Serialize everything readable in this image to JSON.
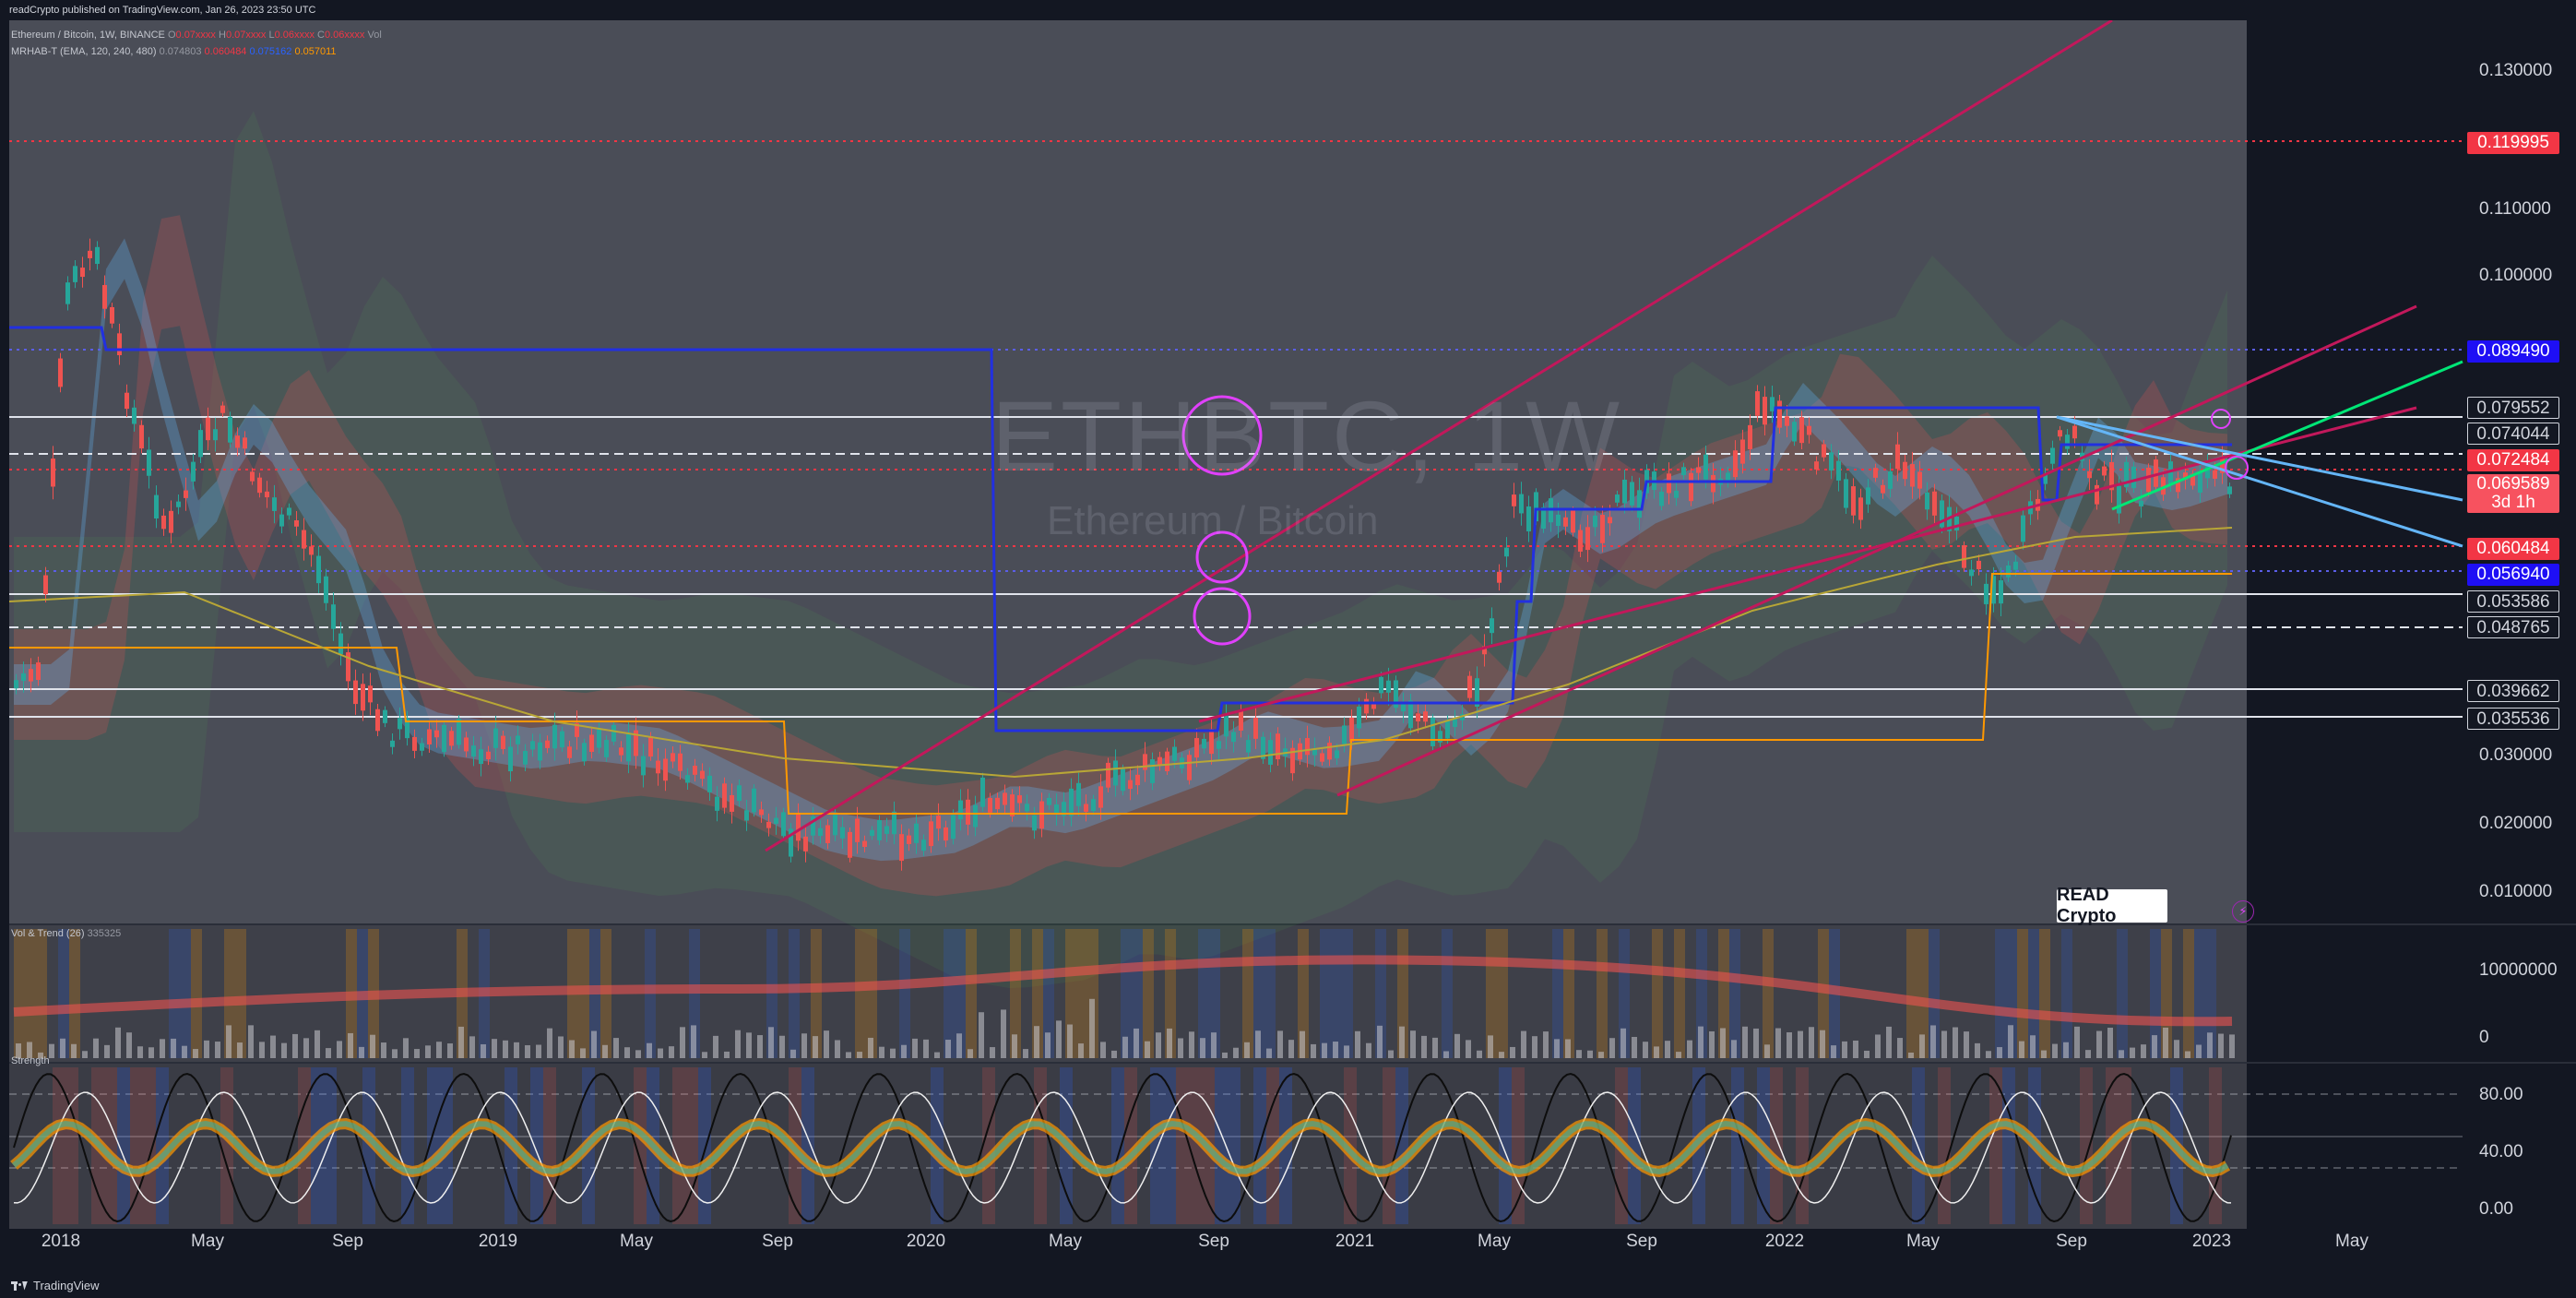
{
  "header": {
    "publisher_line": "readCrypto published on TradingView.com, Jan 26, 2023 23:50 UTC"
  },
  "legend": {
    "symbol_line": "Ethereum / Bitcoin, 1W, BINANCE",
    "ohlc_prefix": "O",
    "ohlc_o": "0.07xxxx",
    "ohlc_h": "H",
    "ohlc_h_val": "0.07xxxx",
    "ohlc_l": "L",
    "ohlc_l_val": "0.06xxxx",
    "ohlc_c": "C",
    "ohlc_c_val": "0.06xxxx",
    "vol_label": "Vol",
    "indicator_line": "MRHAB-T (EMA, 120, 240, 480)",
    "indicator_v1": "0.074803",
    "indicator_v2": "0.060484",
    "indicator_v3": "0.075162",
    "indicator_v4": "0.057011",
    "volume_pane_label": "Vol & Trend (26)",
    "volume_pane_value": "335325",
    "strength_pane_label": "Strength"
  },
  "watermark": {
    "title": "ETHBTC, 1W",
    "subtitle": "Ethereum / Bitcoin"
  },
  "price_axis": {
    "ticks": [
      "0.130000",
      "0.110000",
      "0.100000",
      "0.030000",
      "0.020000",
      "0.010000"
    ],
    "badges": {
      "b0": "0.119995",
      "b1": "0.089490",
      "b2": "0.079552",
      "b3": "0.074044",
      "b4": "0.072484",
      "b5": "0.069589",
      "b5_sub": "3d 1h",
      "b6": "0.060484",
      "b7": "0.056940",
      "b8": "0.053586",
      "b9": "0.048765",
      "b10": "0.039662",
      "b11": "0.035536"
    }
  },
  "volume_axis": {
    "ticks": [
      "10000000",
      "0"
    ]
  },
  "strength_axis": {
    "ticks": [
      "80.00",
      "40.00",
      "0.00"
    ]
  },
  "time_axis": {
    "labels": [
      "2018",
      "May",
      "Sep",
      "2019",
      "May",
      "Sep",
      "2020",
      "May",
      "Sep",
      "2021",
      "May",
      "Sep",
      "2022",
      "May",
      "Sep",
      "2023",
      "May"
    ]
  },
  "footer": {
    "brand": "TradingView",
    "read_logo": "READ Crypto"
  },
  "colors": {
    "background": "#131722",
    "up_candle": "#26a69a",
    "down_candle": "#ef5350",
    "ema_blue": "#2962ff",
    "trendline_red": "#c2185b",
    "trendline_green": "#00e676",
    "magenta": "#e040fb",
    "orange": "#ff9800",
    "olive": "#b8a636"
  }
}
